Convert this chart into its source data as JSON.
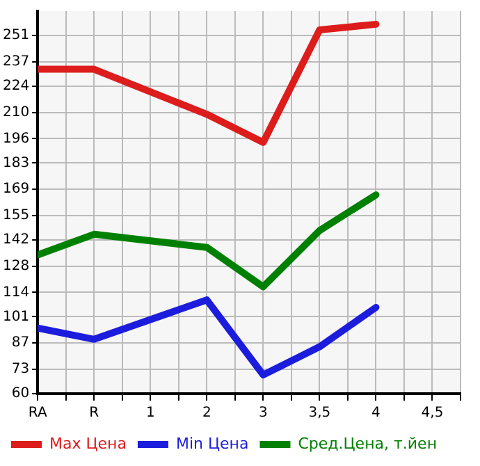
{
  "chart_data": {
    "type": "line",
    "categories": [
      "RA",
      "R",
      "1",
      "2",
      "3",
      "3,5",
      "4",
      "4,5"
    ],
    "series": [
      {
        "name": "Max Цена",
        "color": "#dd1c1c",
        "values": [
          233,
          233,
          null,
          209,
          194,
          254,
          257,
          null
        ]
      },
      {
        "name": "Min Цена",
        "color": "#1c1cdd",
        "values": [
          95,
          89,
          null,
          110,
          70,
          85,
          106,
          null
        ]
      },
      {
        "name": "Сред.Цена, т.йен",
        "color": "#008000",
        "values": [
          134,
          145,
          null,
          138,
          117,
          147,
          166,
          null
        ]
      }
    ],
    "ylim": [
      60,
      264
    ],
    "yticks": [
      60,
      73,
      87,
      101,
      114,
      128,
      142,
      155,
      169,
      183,
      196,
      210,
      224,
      237,
      251
    ],
    "grid": true,
    "legend": "bottom",
    "marker": "none",
    "line_style": "solid"
  }
}
